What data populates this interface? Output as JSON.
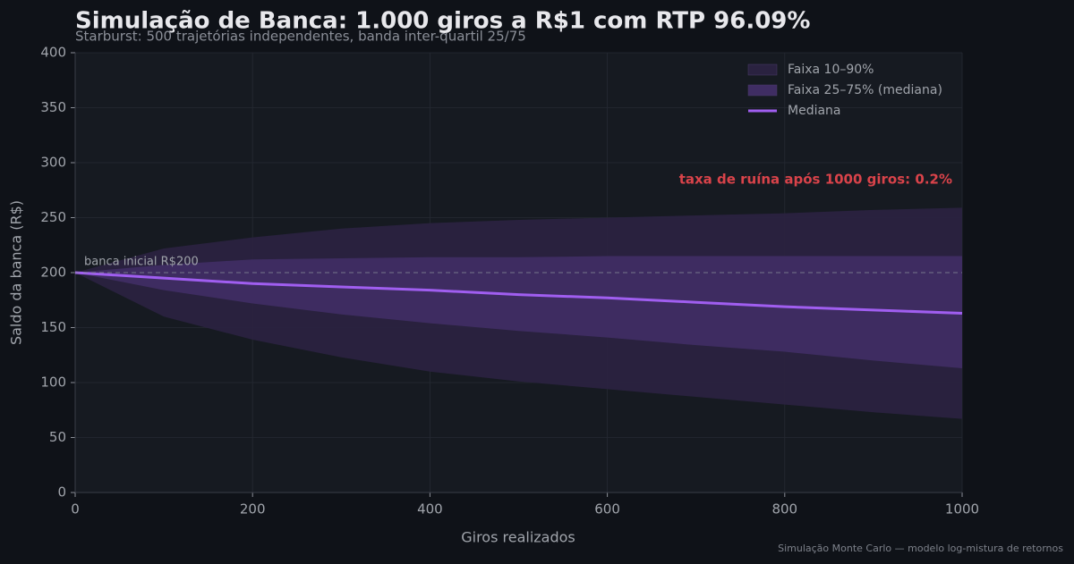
{
  "chart_data": {
    "type": "band",
    "title": "Simulação de Banca: 1.000 giros a R$1 com RTP 96.09%",
    "subtitle": "Starburst: 500 trajetórias independentes, banda inter-quartil 25/75",
    "x_label": "Giros realizados",
    "y_label": "Saldo da banca (R$)",
    "footer": "Simulação Monte Carlo — modelo log-mistura de retornos",
    "annotation": "taxa de ruína após 1000 giros: 0.2%",
    "baseline": 200,
    "baseline_label": "banca inicial R$200",
    "x": [
      0,
      100,
      200,
      300,
      400,
      500,
      600,
      700,
      800,
      900,
      1000
    ],
    "series": [
      {
        "name": "Faixa 10–90%",
        "color": "#2a2240",
        "high": [
          200,
          222,
          232,
          240,
          245,
          248,
          250,
          252,
          254,
          257,
          259
        ],
        "low": [
          200,
          160,
          139,
          123,
          110,
          101,
          94,
          87,
          80,
          73,
          67
        ]
      },
      {
        "name": "Faixa 25–75% (mediana)",
        "color": "#3f2d63",
        "high": [
          200,
          207,
          212,
          213,
          214,
          214,
          215,
          215,
          215,
          215,
          215
        ],
        "low": [
          200,
          184,
          172,
          162,
          154,
          147,
          141,
          134,
          128,
          120,
          113
        ]
      },
      {
        "name": "Mediana",
        "color": "#a05ef0",
        "values": [
          200,
          195,
          190,
          187,
          184,
          180,
          177,
          173,
          169,
          166,
          163
        ]
      }
    ],
    "xlim": [
      0,
      1000
    ],
    "ylim": [
      0,
      400
    ],
    "xticks": [
      0,
      200,
      400,
      600,
      800,
      1000
    ],
    "yticks": [
      0,
      50,
      100,
      150,
      200,
      250,
      300,
      350,
      400
    ],
    "grid": true,
    "legend": "upper right"
  }
}
